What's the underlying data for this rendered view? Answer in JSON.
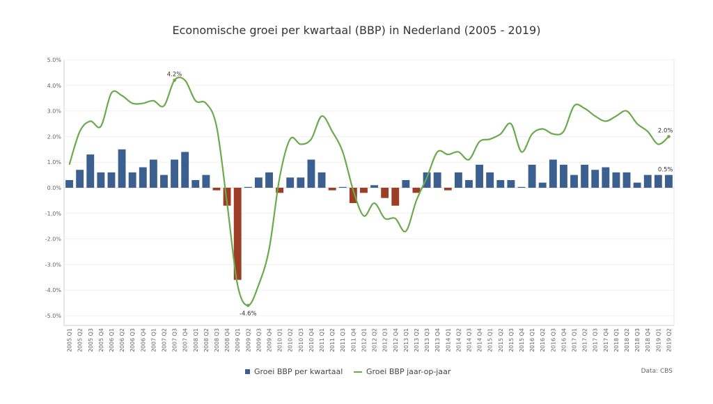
{
  "chart_data": {
    "type": "bar+line",
    "title": "Economische groei per kwartaal (BBP) in Nederland (2005 - 2019)",
    "categories": [
      "2005 Q1",
      "2005 Q2",
      "2005 Q3",
      "2005 Q4",
      "2006 Q1",
      "2006 Q2",
      "2006 Q3",
      "2006 Q4",
      "2007 Q1",
      "2007 Q2",
      "2007 Q3",
      "2007 Q4",
      "2008 Q1",
      "2008 Q2",
      "2008 Q3",
      "2008 Q4",
      "2009 Q1",
      "2009 Q2",
      "2009 Q3",
      "2009 Q4",
      "2010 Q1",
      "2010 Q2",
      "2010 Q3",
      "2010 Q4",
      "2011 Q1",
      "2011 Q2",
      "2011 Q3",
      "2011 Q4",
      "2012 Q1",
      "2012 Q2",
      "2012 Q3",
      "2012 Q4",
      "2013 Q1",
      "2013 Q2",
      "2013 Q3",
      "2013 Q4",
      "2014 Q1",
      "2014 Q2",
      "2014 Q3",
      "2014 Q4",
      "2015 Q1",
      "2015 Q2",
      "2015 Q3",
      "2015 Q4",
      "2016 Q1",
      "2016 Q2",
      "2016 Q3",
      "2016 Q4",
      "2017 Q1",
      "2017 Q2",
      "2017 Q3",
      "2017 Q4",
      "2018 Q1",
      "2018 Q2",
      "2018 Q3",
      "2018 Q4",
      "2019 Q1",
      "2019 Q2"
    ],
    "series": [
      {
        "name": "Groei BBP per kwartaal",
        "type": "bar",
        "values": [
          0.3,
          0.7,
          1.3,
          0.6,
          0.6,
          1.5,
          0.6,
          0.8,
          1.1,
          0.5,
          1.1,
          1.4,
          0.3,
          0.5,
          -0.1,
          -0.7,
          -3.6,
          0.0,
          0.4,
          0.6,
          -0.2,
          0.4,
          0.4,
          1.1,
          0.6,
          -0.1,
          0.0,
          -0.6,
          -0.2,
          0.1,
          -0.4,
          -0.7,
          0.3,
          -0.2,
          0.6,
          0.6,
          -0.1,
          0.6,
          0.3,
          0.9,
          0.6,
          0.3,
          0.3,
          0.0,
          0.9,
          0.2,
          1.1,
          0.9,
          0.5,
          0.9,
          0.7,
          0.8,
          0.6,
          0.6,
          0.2,
          0.5,
          0.5,
          0.5
        ]
      },
      {
        "name": "Groei BBP jaar-op-jaar",
        "type": "line",
        "values": [
          0.9,
          2.2,
          2.6,
          2.4,
          3.7,
          3.6,
          3.3,
          3.3,
          3.4,
          3.2,
          4.2,
          4.2,
          3.4,
          3.3,
          2.4,
          -0.6,
          -3.8,
          -4.6,
          -3.8,
          -2.4,
          0.4,
          1.9,
          1.7,
          1.9,
          2.8,
          2.2,
          1.4,
          -0.1,
          -1.1,
          -0.6,
          -1.2,
          -1.2,
          -1.7,
          -0.5,
          0.4,
          1.4,
          1.3,
          1.4,
          1.1,
          1.8,
          1.9,
          2.1,
          2.5,
          1.4,
          2.1,
          2.3,
          2.1,
          2.2,
          3.2,
          3.1,
          2.8,
          2.6,
          2.8,
          3.0,
          2.5,
          2.2,
          1.7,
          2.0
        ]
      }
    ],
    "ylim": [
      -5.2,
      5.0
    ],
    "yticks": [
      "5.0%",
      "4.0%",
      "3.0%",
      "2.0%",
      "1.0%",
      "0.0%",
      "-1.0%",
      "-2.0%",
      "-3.0%",
      "-4.0%",
      "-5.0%"
    ],
    "grid": true,
    "legend_position": "bottom-center",
    "annotations": [
      {
        "series": 1,
        "index": 10,
        "text": "4.2%"
      },
      {
        "series": 1,
        "index": 17,
        "text": "-4.6%"
      },
      {
        "series": 1,
        "index": 57,
        "text": "2.0%"
      },
      {
        "series": 0,
        "index": 57,
        "text": "0.5%"
      }
    ],
    "colors": {
      "positive_bar": "#3b5f8f",
      "negative_bar": "#9c3d26",
      "line": "#6aaa4c"
    }
  },
  "source_note": "Data: CBS"
}
